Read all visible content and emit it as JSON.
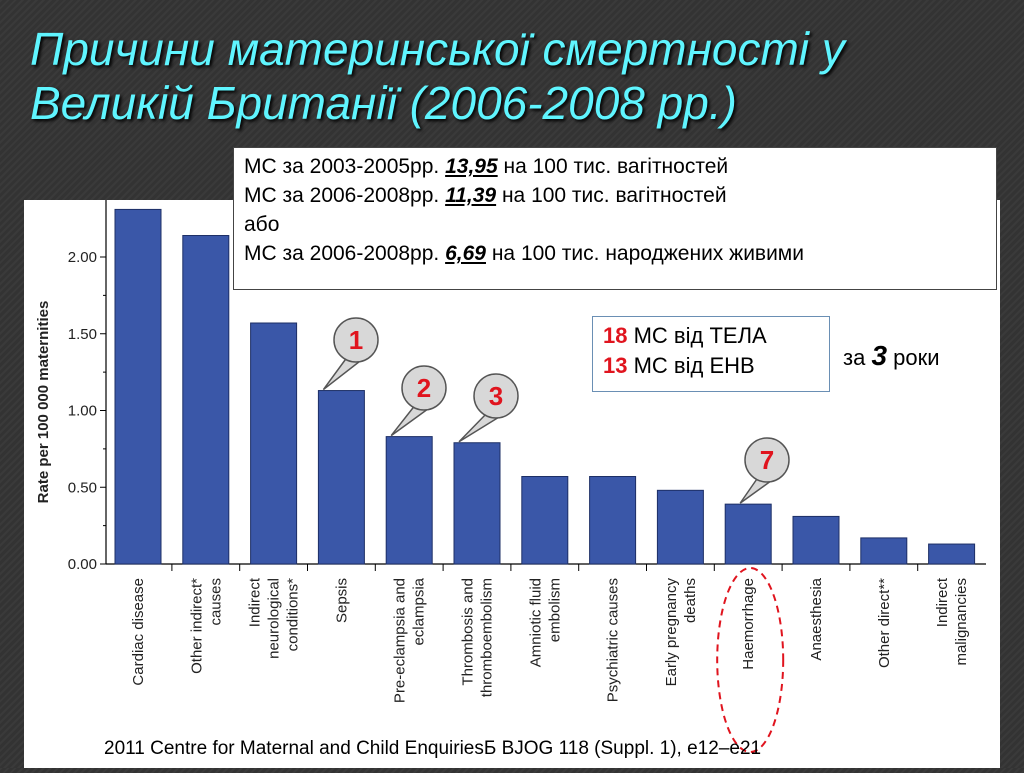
{
  "title": "Причини материнської смертності у Великій Британії (2006-2008 рр.)",
  "info": {
    "line1_prefix": "МС за 2003-2005рр.",
    "line1_value": "13,95",
    "line1_suffix": "на 100 тис. вагітностей",
    "line2_prefix": "МС за 2006-2008рр.",
    "line2_value": "11,39",
    "line2_suffix": "на 100 тис. вагітностей",
    "line3": "або",
    "line4_prefix": "МС за 2006-2008рр.",
    "line4_value": "6,69",
    "line4_suffix": "на 100 тис. народжених живими"
  },
  "tela": {
    "line1_num": "18",
    "line1_text": "МС від ТЕЛА",
    "line2_num": "13",
    "line2_text": "МС від ЕНВ",
    "za_prefix": "за",
    "za_num": "3",
    "za_suffix": "роки"
  },
  "callouts": [
    {
      "label": "1",
      "category": "Sepsis"
    },
    {
      "label": "2",
      "category": "Pre-eclampsia and eclampsia"
    },
    {
      "label": "3",
      "category": "Thrombosis and thromboembolism"
    },
    {
      "label": "7",
      "category": "Haemorrhage"
    }
  ],
  "footer": "2011 Centre for Maternal and Child EnquiriesБ BJOG 118 (Suppl. 1), e12–e21",
  "colors": {
    "bar": "#3a57a8",
    "callout": "#d8d8d8",
    "callout_text": "#e0141e",
    "ellipse": "#e0141e"
  },
  "chart_data": {
    "type": "bar",
    "ylabel": "Rate per 100 000 maternities",
    "ylim": [
      0,
      2.2
    ],
    "yticks": [
      "0.00",
      "0.50",
      "1.00",
      "1.50",
      "2.00"
    ],
    "categories": [
      [
        "Cardiac disease"
      ],
      [
        "Other indirect*",
        "causes"
      ],
      [
        "Indirect",
        "neurological",
        "conditions*"
      ],
      [
        "Sepsis"
      ],
      [
        "Pre-eclampsia and",
        "eclampsia"
      ],
      [
        "Thrombosis and",
        "thromboembolism"
      ],
      [
        "Amniotic fluid",
        "embolism"
      ],
      [
        "Psychiatric causes"
      ],
      [
        "Early pregnancy",
        "deaths"
      ],
      [
        "Haemorrhage"
      ],
      [
        "Anaesthesia"
      ],
      [
        "Other direct**"
      ],
      [
        "Indirect",
        "malignancies"
      ]
    ],
    "values": [
      2.31,
      2.14,
      1.57,
      1.13,
      0.83,
      0.79,
      0.57,
      0.57,
      0.48,
      0.39,
      0.31,
      0.17,
      0.13
    ]
  }
}
